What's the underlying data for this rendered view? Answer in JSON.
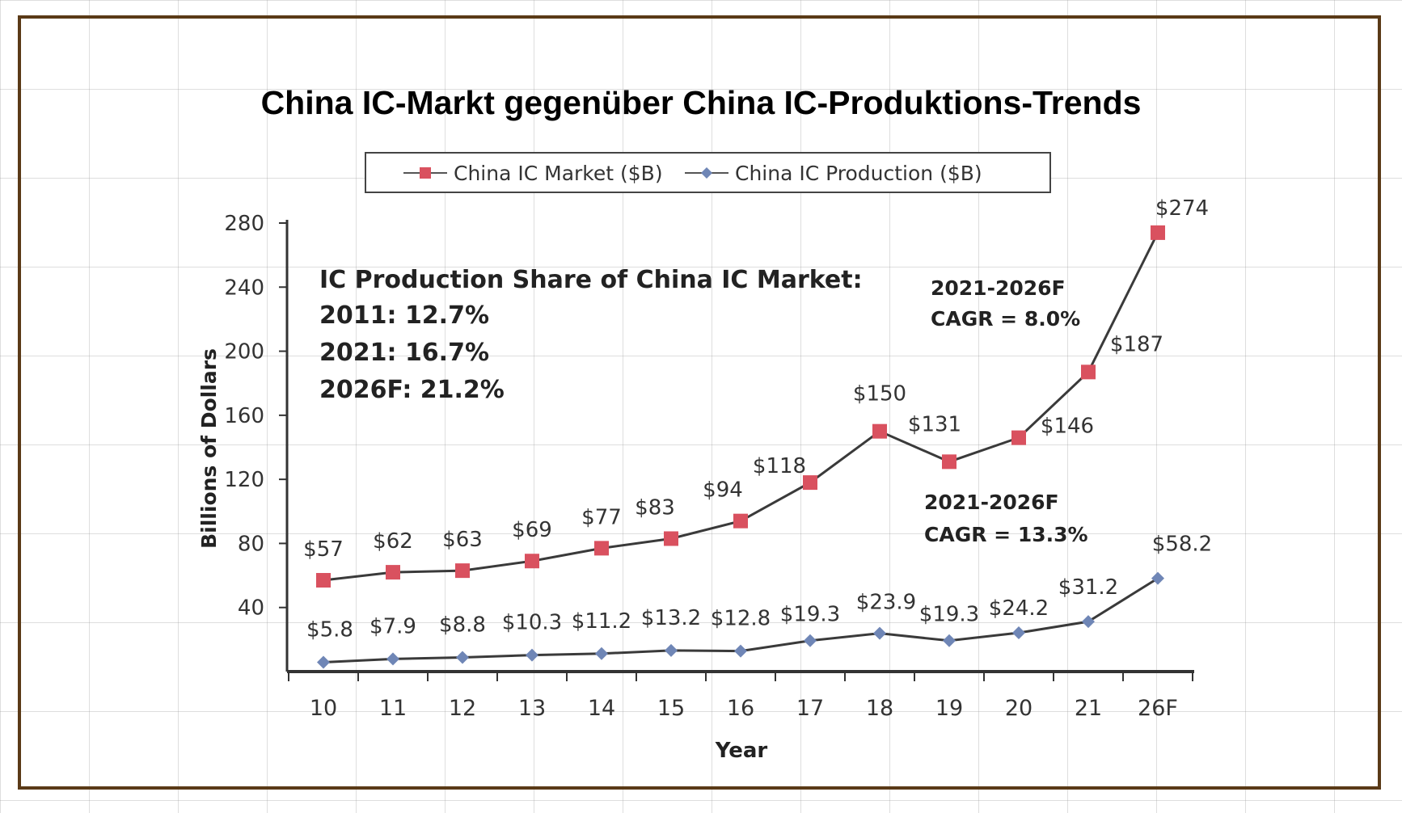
{
  "title": "China IC-Markt gegenüber China IC-Produktions-Trends",
  "colors": {
    "market": "#d9515f",
    "production": "#6f86b6",
    "line": "#333333",
    "frame": "#5a3a17"
  },
  "chart_data": {
    "type": "line",
    "categories": [
      "10",
      "11",
      "12",
      "13",
      "14",
      "15",
      "16",
      "17",
      "18",
      "19",
      "20",
      "21",
      "26F"
    ],
    "series": [
      {
        "name": "China IC Market ($B)",
        "values": [
          57,
          62,
          63,
          69,
          77,
          83,
          94,
          118,
          150,
          131,
          146,
          187,
          274
        ],
        "labels": [
          "$57",
          "$62",
          "$63",
          "$69",
          "$77",
          "$83",
          "$94",
          "$118",
          "$150",
          "$131",
          "$146",
          "$187",
          "$274"
        ]
      },
      {
        "name": "China IC Production ($B)",
        "values": [
          5.8,
          7.9,
          8.8,
          10.3,
          11.2,
          13.2,
          12.8,
          19.3,
          23.9,
          19.3,
          24.2,
          31.2,
          58.2
        ],
        "labels": [
          "$5.8",
          "$7.9",
          "$8.8",
          "$10.3",
          "$11.2",
          "$13.2",
          "$12.8",
          "$19.3",
          "$23.9",
          "$19.3",
          "$24.2",
          "$31.2",
          "$58.2"
        ]
      }
    ],
    "xlabel": "Year",
    "ylabel": "Billions of Dollars",
    "yticks": [
      40,
      80,
      120,
      160,
      200,
      240,
      280
    ],
    "ylim": [
      0,
      280
    ],
    "legend_position": "top-center",
    "annotations": {
      "share_title": "IC Production Share of China IC Market:",
      "share_lines": [
        "2011: 12.7%",
        "2021: 16.7%",
        "2026F: 21.2%"
      ],
      "market_cagr": [
        "2021-2026F",
        "CAGR = 8.0%"
      ],
      "production_cagr": [
        "2021-2026F",
        "CAGR = 13.3%"
      ]
    }
  }
}
